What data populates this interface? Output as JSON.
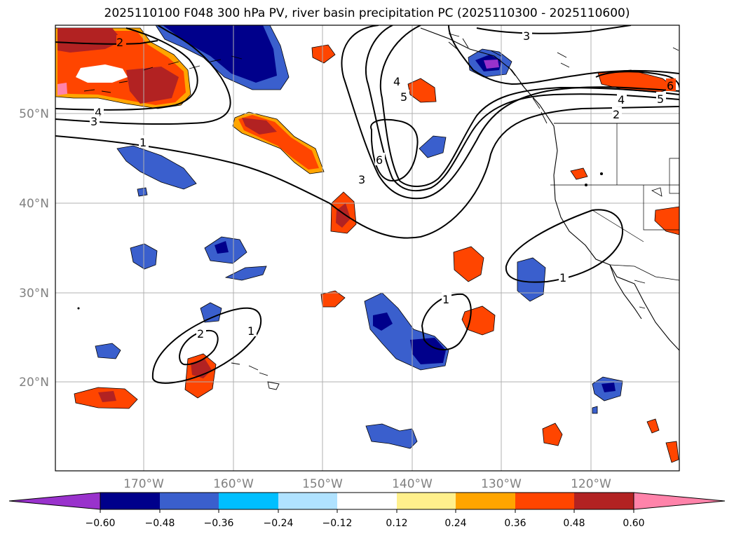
{
  "title": "2025110100 F048 300 hPa PV, river basin precipitation PC (2025110300 - 2025110600)",
  "latitude_labels": [
    "50°N",
    "40°N",
    "30°N",
    "20°N"
  ],
  "longitude_labels": [
    "170°W",
    "160°W",
    "150°W",
    "140°W",
    "130°W",
    "120°W"
  ],
  "contour_labels": [
    {
      "id": "c2-nw",
      "text": "2"
    },
    {
      "id": "c4-w",
      "text": "4"
    },
    {
      "id": "c3-w",
      "text": "3"
    },
    {
      "id": "c1-w",
      "text": "1"
    },
    {
      "id": "c3-n",
      "text": "3"
    },
    {
      "id": "c4-c",
      "text": "4"
    },
    {
      "id": "c5-c",
      "text": "5"
    },
    {
      "id": "c6-c",
      "text": "6"
    },
    {
      "id": "c3-c",
      "text": "3"
    },
    {
      "id": "c4-e",
      "text": "4"
    },
    {
      "id": "c5-e",
      "text": "5"
    },
    {
      "id": "c2-e",
      "text": "2"
    },
    {
      "id": "c6-e",
      "text": "6"
    },
    {
      "id": "c1-e",
      "text": "1"
    },
    {
      "id": "c1-s",
      "text": "1"
    },
    {
      "id": "c2-sw",
      "text": "2"
    },
    {
      "id": "c1-sw",
      "text": "1"
    }
  ],
  "colorbar": {
    "ticks": [
      "−0.60",
      "−0.48",
      "−0.36",
      "−0.24",
      "−0.12",
      "0.12",
      "0.24",
      "0.36",
      "0.48",
      "0.60"
    ],
    "colors": {
      "under": "#9932cc",
      "bins": [
        "#00008b",
        "#3a5fcd",
        "#00bfff",
        "#b0e2ff",
        "#ffffff",
        "#fff08c",
        "#ffa500",
        "#ff4500",
        "#b22222"
      ],
      "over": "#ff83aa"
    }
  }
}
